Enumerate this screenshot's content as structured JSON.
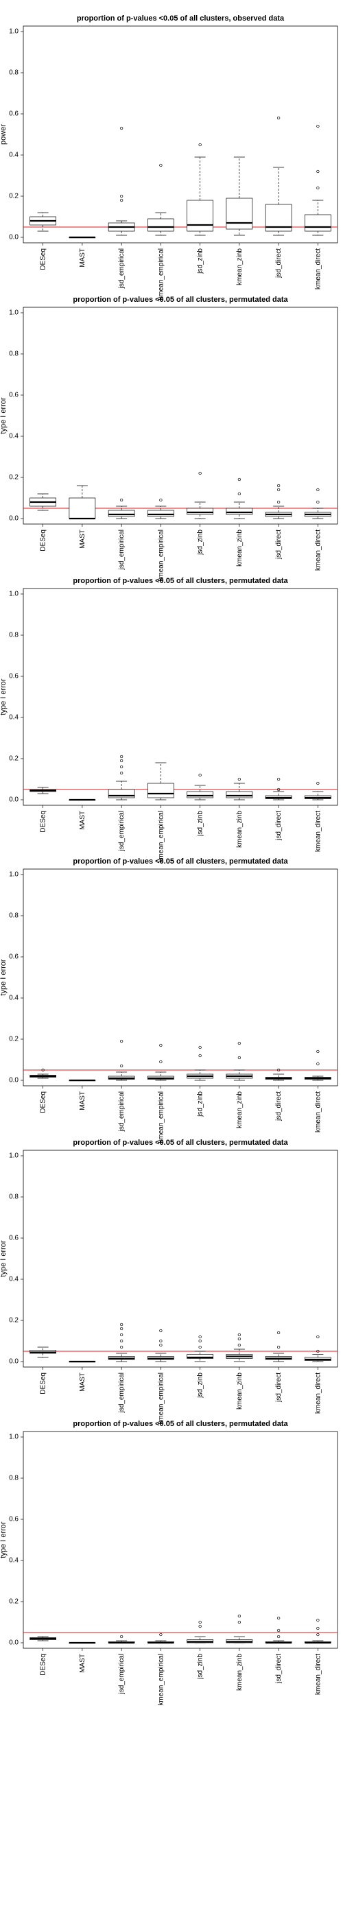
{
  "figure": {
    "background": "#ffffff",
    "reference_line_color": "#e31a1c"
  },
  "chart_data": [
    {
      "type": "box",
      "title": "proportion of p-values <0.05 of all clusters, observed data",
      "ylabel": "power",
      "ylim": [
        0,
        1
      ],
      "yticks": [
        "0.0",
        "0.2",
        "0.4",
        "0.6",
        "0.8",
        "1.0"
      ],
      "reference_line": 0.05,
      "categories": [
        "DESeq",
        "MAST",
        "jsd_empirical",
        "kmean_empirical",
        "jsd_zinb",
        "kmean_zinb",
        "jsd_direct",
        "kmean_direct"
      ],
      "boxes": [
        {
          "min": 0.03,
          "q1": 0.06,
          "median": 0.08,
          "q3": 0.1,
          "max": 0.12,
          "outliers": []
        },
        {
          "min": 0.0,
          "q1": 0.0,
          "median": 0.0,
          "q3": 0.0,
          "max": 0.0,
          "outliers": []
        },
        {
          "min": 0.01,
          "q1": 0.03,
          "median": 0.05,
          "q3": 0.07,
          "max": 0.08,
          "outliers": [
            0.18,
            0.2,
            0.53
          ]
        },
        {
          "min": 0.01,
          "q1": 0.03,
          "median": 0.05,
          "q3": 0.09,
          "max": 0.12,
          "outliers": [
            0.35
          ]
        },
        {
          "min": 0.01,
          "q1": 0.03,
          "median": 0.06,
          "q3": 0.18,
          "max": 0.39,
          "outliers": [
            0.45
          ]
        },
        {
          "min": 0.01,
          "q1": 0.04,
          "median": 0.07,
          "q3": 0.19,
          "max": 0.39,
          "outliers": []
        },
        {
          "min": 0.01,
          "q1": 0.03,
          "median": 0.05,
          "q3": 0.16,
          "max": 0.34,
          "outliers": [
            0.58
          ]
        },
        {
          "min": 0.01,
          "q1": 0.03,
          "median": 0.05,
          "q3": 0.11,
          "max": 0.18,
          "outliers": [
            0.24,
            0.32,
            0.54
          ]
        }
      ]
    },
    {
      "type": "box",
      "title": "proportion of p-values <0.05 of all clusters, permutated data",
      "ylabel": "type I error",
      "ylim": [
        0,
        1
      ],
      "yticks": [
        "0.0",
        "0.2",
        "0.4",
        "0.6",
        "0.8",
        "1.0"
      ],
      "reference_line": 0.05,
      "categories": [
        "DESeq",
        "MAST",
        "jsd_empirical",
        "kmean_empirical",
        "jsd_zinb",
        "kmean_zinb",
        "jsd_direct",
        "kmean_direct"
      ],
      "boxes": [
        {
          "min": 0.04,
          "q1": 0.06,
          "median": 0.08,
          "q3": 0.1,
          "max": 0.12,
          "outliers": []
        },
        {
          "min": 0.0,
          "q1": 0.0,
          "median": 0.0,
          "q3": 0.1,
          "max": 0.16,
          "outliers": []
        },
        {
          "min": 0.0,
          "q1": 0.01,
          "median": 0.02,
          "q3": 0.04,
          "max": 0.06,
          "outliers": [
            0.09
          ]
        },
        {
          "min": 0.0,
          "q1": 0.01,
          "median": 0.02,
          "q3": 0.04,
          "max": 0.06,
          "outliers": [
            0.09
          ]
        },
        {
          "min": 0.0,
          "q1": 0.02,
          "median": 0.03,
          "q3": 0.05,
          "max": 0.08,
          "outliers": [
            0.22
          ]
        },
        {
          "min": 0.0,
          "q1": 0.02,
          "median": 0.03,
          "q3": 0.05,
          "max": 0.08,
          "outliers": [
            0.12,
            0.19
          ]
        },
        {
          "min": 0.0,
          "q1": 0.01,
          "median": 0.02,
          "q3": 0.03,
          "max": 0.06,
          "outliers": [
            0.08,
            0.14,
            0.16
          ]
        },
        {
          "min": 0.0,
          "q1": 0.01,
          "median": 0.02,
          "q3": 0.03,
          "max": 0.05,
          "outliers": [
            0.08,
            0.14
          ]
        }
      ]
    },
    {
      "type": "box",
      "title": "proportion of p-values <0.05 of all clusters, permutated data",
      "ylabel": "type I error",
      "ylim": [
        0,
        1
      ],
      "yticks": [
        "0.0",
        "0.2",
        "0.4",
        "0.6",
        "0.8",
        "1.0"
      ],
      "reference_line": 0.05,
      "categories": [
        "DESeq",
        "MAST",
        "jsd_empirical",
        "kmean_empirical",
        "jsd_zinb",
        "kmean_zinb",
        "jsd_direct",
        "kmean_direct"
      ],
      "boxes": [
        {
          "min": 0.03,
          "q1": 0.04,
          "median": 0.045,
          "q3": 0.05,
          "max": 0.06,
          "outliers": []
        },
        {
          "min": 0.0,
          "q1": 0.0,
          "median": 0.0,
          "q3": 0.0,
          "max": 0.0,
          "outliers": []
        },
        {
          "min": 0.0,
          "q1": 0.01,
          "median": 0.02,
          "q3": 0.05,
          "max": 0.09,
          "outliers": [
            0.13,
            0.16,
            0.19,
            0.21
          ]
        },
        {
          "min": 0.0,
          "q1": 0.01,
          "median": 0.03,
          "q3": 0.08,
          "max": 0.18,
          "outliers": []
        },
        {
          "min": 0.0,
          "q1": 0.01,
          "median": 0.02,
          "q3": 0.04,
          "max": 0.07,
          "outliers": [
            0.12
          ]
        },
        {
          "min": 0.0,
          "q1": 0.01,
          "median": 0.02,
          "q3": 0.04,
          "max": 0.08,
          "outliers": [
            0.1
          ]
        },
        {
          "min": 0.0,
          "q1": 0.005,
          "median": 0.01,
          "q3": 0.02,
          "max": 0.04,
          "outliers": [
            0.05,
            0.1
          ]
        },
        {
          "min": 0.0,
          "q1": 0.005,
          "median": 0.01,
          "q3": 0.02,
          "max": 0.04,
          "outliers": [
            0.08
          ]
        }
      ]
    },
    {
      "type": "box",
      "title": "proportion of p-values <0.05 of all clusters, permutated data",
      "ylabel": "type I error",
      "ylim": [
        0,
        1
      ],
      "yticks": [
        "0.0",
        "0.2",
        "0.4",
        "0.6",
        "0.8",
        "1.0"
      ],
      "reference_line": 0.05,
      "categories": [
        "DESeq",
        "MAST",
        "jsd_empirical",
        "kmean_empirical",
        "jsd_zinb",
        "kmean_zinb",
        "jsd_direct",
        "kmean_direct"
      ],
      "boxes": [
        {
          "min": 0.01,
          "q1": 0.015,
          "median": 0.02,
          "q3": 0.025,
          "max": 0.03,
          "outliers": [
            0.05
          ]
        },
        {
          "min": 0.0,
          "q1": 0.0,
          "median": 0.0,
          "q3": 0.0,
          "max": 0.0,
          "outliers": []
        },
        {
          "min": 0.0,
          "q1": 0.005,
          "median": 0.01,
          "q3": 0.02,
          "max": 0.04,
          "outliers": [
            0.07,
            0.19
          ]
        },
        {
          "min": 0.0,
          "q1": 0.005,
          "median": 0.01,
          "q3": 0.02,
          "max": 0.04,
          "outliers": [
            0.09,
            0.17
          ]
        },
        {
          "min": 0.0,
          "q1": 0.01,
          "median": 0.02,
          "q3": 0.03,
          "max": 0.05,
          "outliers": [
            0.12,
            0.16
          ]
        },
        {
          "min": 0.0,
          "q1": 0.01,
          "median": 0.02,
          "q3": 0.03,
          "max": 0.05,
          "outliers": [
            0.11,
            0.18
          ]
        },
        {
          "min": 0.0,
          "q1": 0.005,
          "median": 0.01,
          "q3": 0.015,
          "max": 0.03,
          "outliers": [
            0.05
          ]
        },
        {
          "min": 0.0,
          "q1": 0.005,
          "median": 0.01,
          "q3": 0.015,
          "max": 0.02,
          "outliers": [
            0.08,
            0.14
          ]
        }
      ]
    },
    {
      "type": "box",
      "title": "proportion of p-values <0.05 of all clusters, permutated data",
      "ylabel": "type I error",
      "ylim": [
        0,
        1
      ],
      "yticks": [
        "0.0",
        "0.2",
        "0.4",
        "0.6",
        "0.8",
        "1.0"
      ],
      "reference_line": 0.05,
      "categories": [
        "DESeq",
        "MAST",
        "jsd_empirical",
        "kmean_empirical",
        "jsd_zinb",
        "kmean_zinb",
        "jsd_direct",
        "kmean_direct"
      ],
      "boxes": [
        {
          "min": 0.02,
          "q1": 0.04,
          "median": 0.045,
          "q3": 0.055,
          "max": 0.07,
          "outliers": []
        },
        {
          "min": 0.0,
          "q1": 0.0,
          "median": 0.0,
          "q3": 0.0,
          "max": 0.0,
          "outliers": []
        },
        {
          "min": 0.0,
          "q1": 0.01,
          "median": 0.015,
          "q3": 0.025,
          "max": 0.04,
          "outliers": [
            0.07,
            0.1,
            0.13,
            0.16,
            0.18
          ]
        },
        {
          "min": 0.0,
          "q1": 0.01,
          "median": 0.015,
          "q3": 0.025,
          "max": 0.04,
          "outliers": [
            0.08,
            0.1,
            0.15
          ]
        },
        {
          "min": 0.0,
          "q1": 0.015,
          "median": 0.02,
          "q3": 0.035,
          "max": 0.05,
          "outliers": [
            0.07,
            0.1,
            0.12
          ]
        },
        {
          "min": 0.0,
          "q1": 0.015,
          "median": 0.025,
          "q3": 0.035,
          "max": 0.06,
          "outliers": [
            0.08,
            0.11,
            0.13
          ]
        },
        {
          "min": 0.0,
          "q1": 0.01,
          "median": 0.015,
          "q3": 0.025,
          "max": 0.04,
          "outliers": [
            0.07,
            0.14
          ]
        },
        {
          "min": 0.0,
          "q1": 0.005,
          "median": 0.01,
          "q3": 0.02,
          "max": 0.035,
          "outliers": [
            0.05,
            0.12
          ]
        }
      ]
    },
    {
      "type": "box",
      "title": "proportion of p-values <0.05 of all clusters, permutated data",
      "ylabel": "type I error",
      "ylim": [
        0,
        1
      ],
      "yticks": [
        "0.0",
        "0.2",
        "0.4",
        "0.6",
        "0.8",
        "1.0"
      ],
      "reference_line": 0.05,
      "categories": [
        "DESeq",
        "MAST",
        "jsd_empirical",
        "kmean_empirical",
        "jsd_zinb",
        "kmean_zinb",
        "jsd_direct",
        "kmean_direct"
      ],
      "boxes": [
        {
          "min": 0.01,
          "q1": 0.015,
          "median": 0.02,
          "q3": 0.025,
          "max": 0.03,
          "outliers": []
        },
        {
          "min": 0.0,
          "q1": 0.0,
          "median": 0.0,
          "q3": 0.0,
          "max": 0.0,
          "outliers": []
        },
        {
          "min": 0.0,
          "q1": 0.0,
          "median": 0.0,
          "q3": 0.005,
          "max": 0.01,
          "outliers": [
            0.03
          ]
        },
        {
          "min": 0.0,
          "q1": 0.0,
          "median": 0.0,
          "q3": 0.005,
          "max": 0.01,
          "outliers": [
            0.04
          ]
        },
        {
          "min": 0.0,
          "q1": 0.0,
          "median": 0.005,
          "q3": 0.015,
          "max": 0.03,
          "outliers": [
            0.08,
            0.1
          ]
        },
        {
          "min": 0.0,
          "q1": 0.0,
          "median": 0.005,
          "q3": 0.015,
          "max": 0.03,
          "outliers": [
            0.1,
            0.13
          ]
        },
        {
          "min": 0.0,
          "q1": 0.0,
          "median": 0.0,
          "q3": 0.005,
          "max": 0.01,
          "outliers": [
            0.03,
            0.06,
            0.12
          ]
        },
        {
          "min": 0.0,
          "q1": 0.0,
          "median": 0.0,
          "q3": 0.005,
          "max": 0.01,
          "outliers": [
            0.04,
            0.07,
            0.11
          ]
        }
      ]
    }
  ]
}
